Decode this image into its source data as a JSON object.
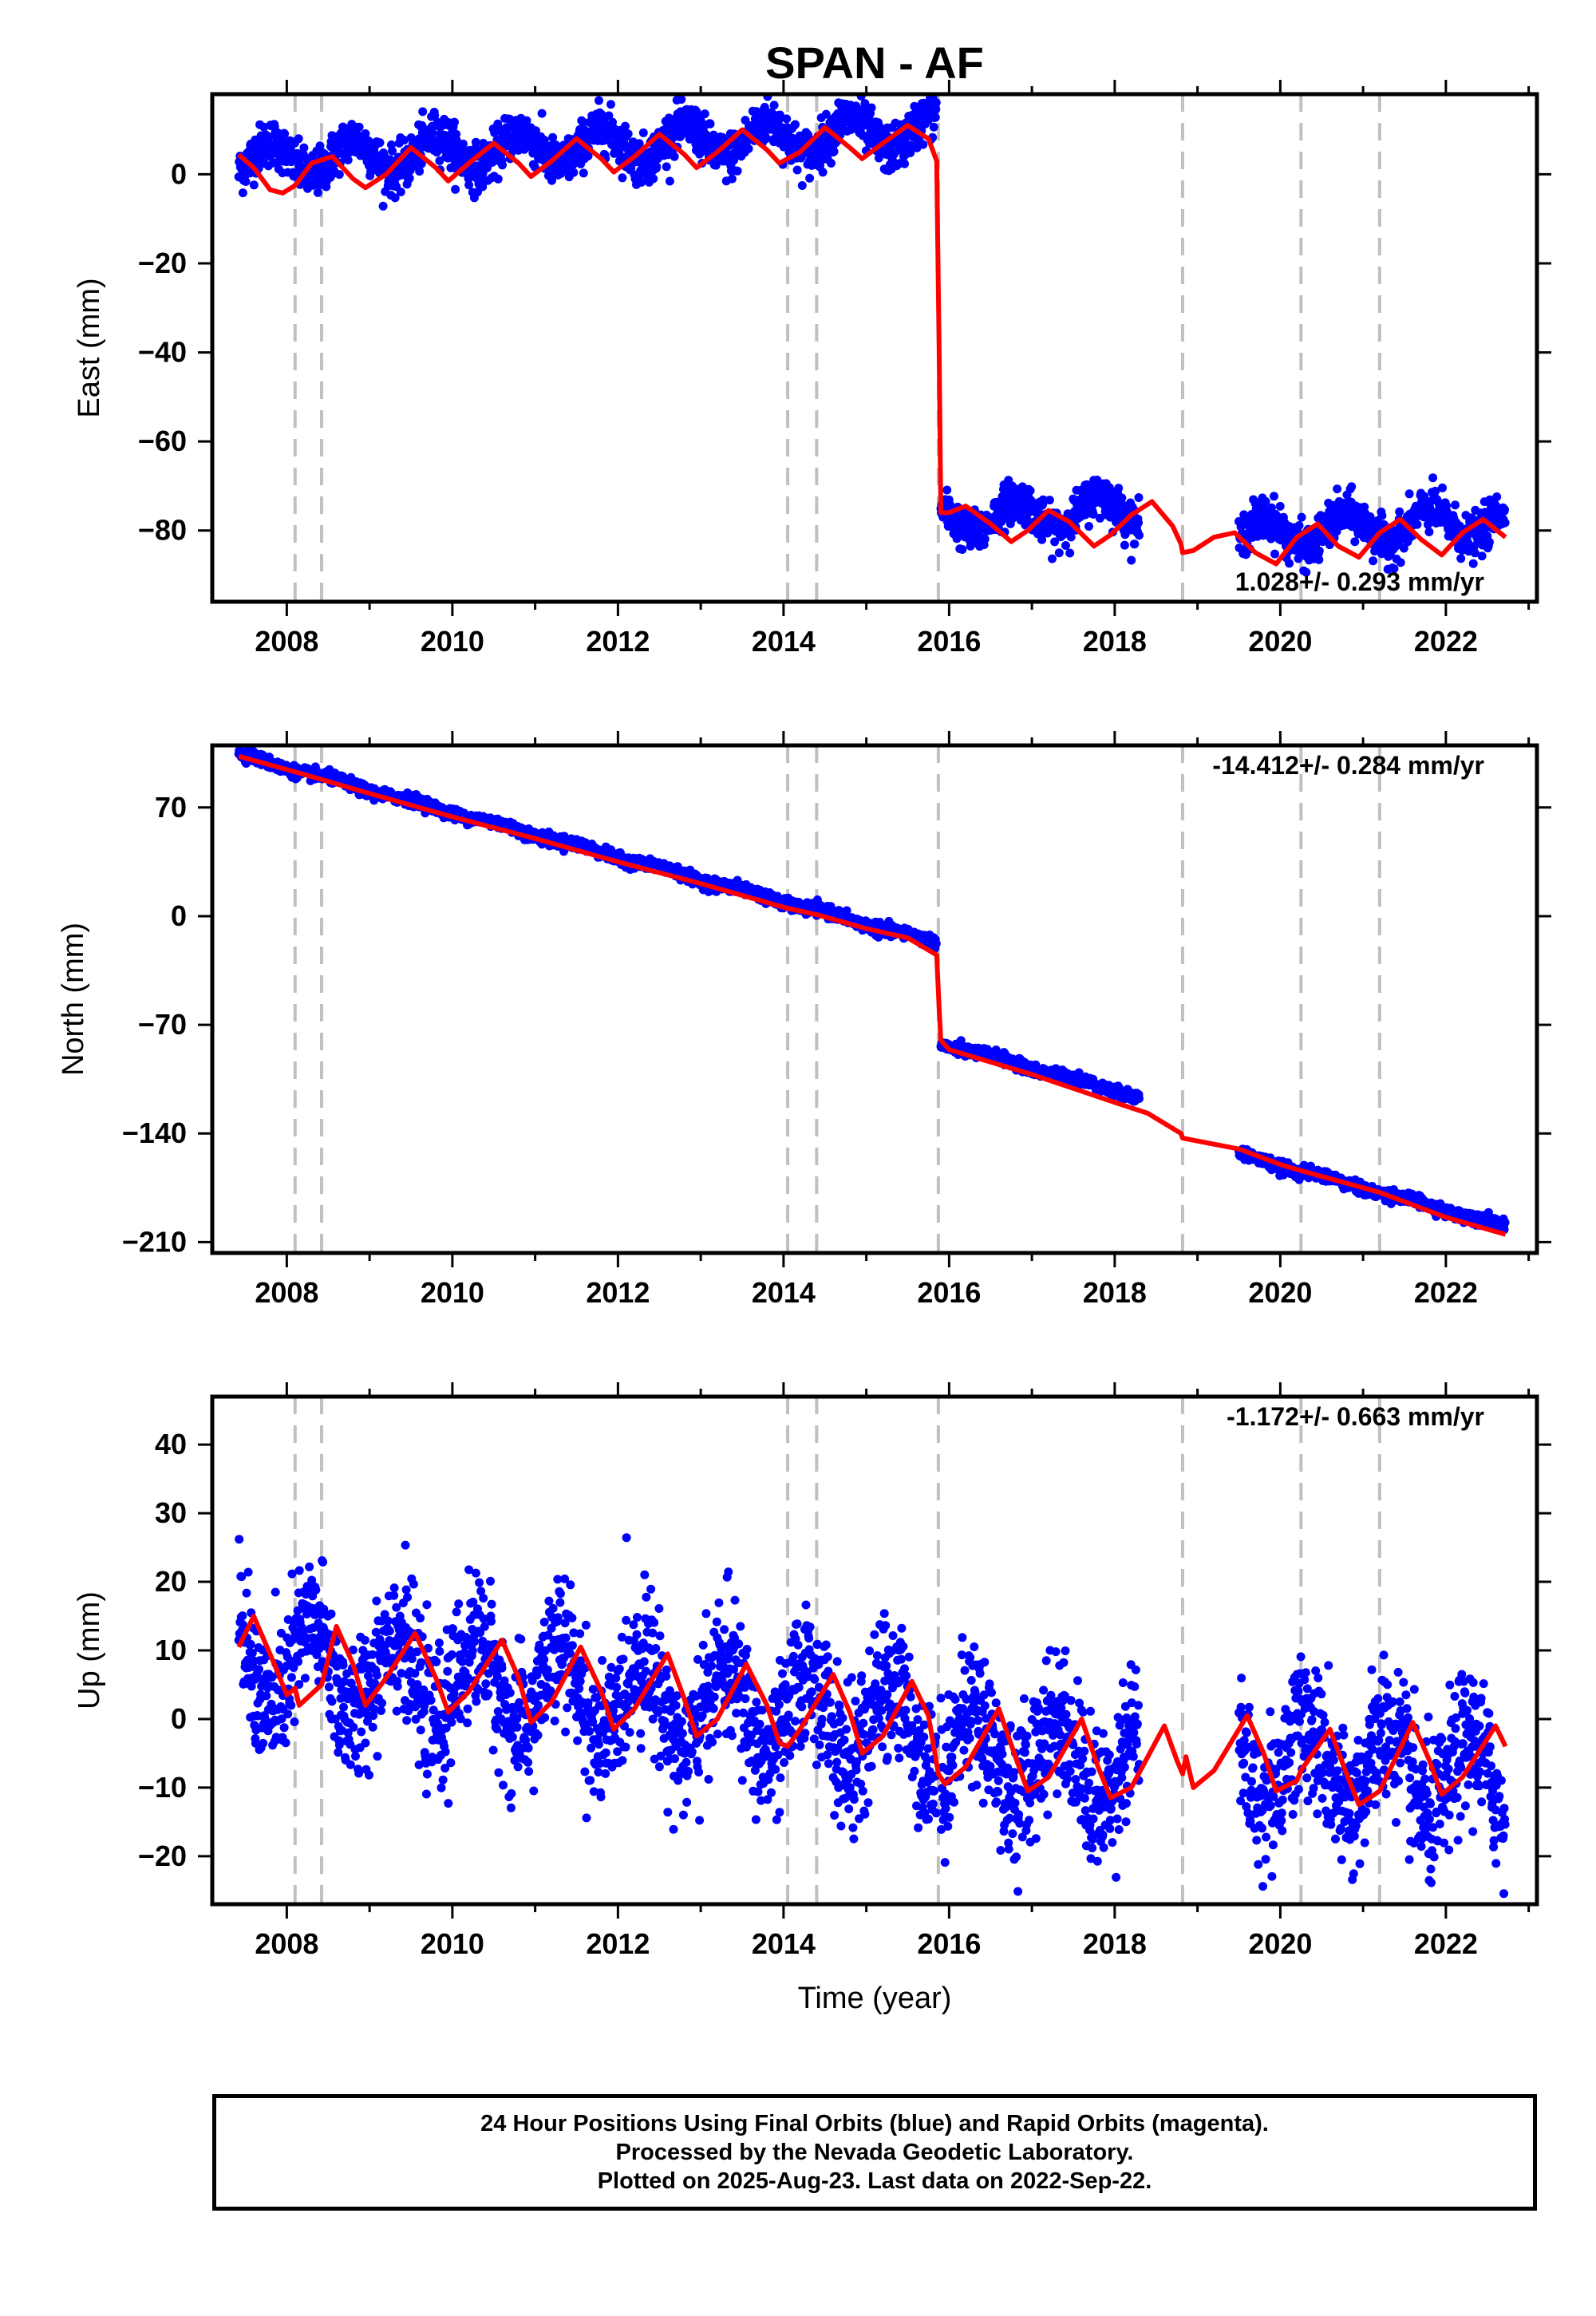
{
  "title": "SPAN - AF",
  "xlabel": "Time (year)",
  "colors": {
    "final_orbits": "#0000ff",
    "model": "#ff0000",
    "equipment_change": "#c0c0c0",
    "axes": "#000000"
  },
  "footer": {
    "line1": "24 Hour Positions Using Final Orbits (blue) and Rapid Orbits (magenta).",
    "line2": "Processed by the Nevada Geodetic Laboratory.",
    "line3": "Plotted on 2025-Aug-23. Last data on 2022-Sep-22."
  },
  "chart_data": [
    {
      "type": "scatter",
      "component": "east",
      "title": "SPAN - AF",
      "ylabel": "East (mm)",
      "xlabel": "",
      "xlim": [
        2007.1,
        2023.1
      ],
      "ylim": [
        -96,
        18
      ],
      "xticks": [
        "2008",
        "2010",
        "2012",
        "2014",
        "2016",
        "2018",
        "2020",
        "2022"
      ],
      "yticks": [
        "0",
        "−20",
        "−40",
        "−60",
        "−80"
      ],
      "ytick_values": [
        0,
        -20,
        -40,
        -60,
        -80
      ],
      "velocity": "1.028+/- 0.293 mm/yr",
      "velocity_position": "bottom-right",
      "equipment_changes": [
        2008.1,
        2008.42,
        2014.05,
        2014.4,
        2015.87,
        2018.82,
        2020.25,
        2021.2
      ],
      "series": [
        {
          "kind": "points",
          "segments": [
            {
              "start": 2007.42,
              "end": 2015.85,
              "offset": 3.0,
              "rate": 0.8,
              "amplitude": 3.8,
              "phase": 0.55,
              "scatter": 2.6
            },
            {
              "start": 2015.9,
              "end": 2018.3,
              "offset": -77.5,
              "rate": 1.0,
              "amplitude": 3.5,
              "phase": 0.55,
              "scatter": 2.3
            },
            {
              "start": 2019.5,
              "end": 2022.72,
              "offset": -81.0,
              "rate": 1.0,
              "amplitude": 3.5,
              "phase": 0.55,
              "scatter": 2.4
            }
          ]
        },
        {
          "kind": "model",
          "points": [
            [
              2007.42,
              4.4
            ],
            [
              2007.6,
              1.5
            ],
            [
              2007.8,
              -3.5
            ],
            [
              2007.95,
              -4.2
            ],
            [
              2008.1,
              -2.5
            ],
            [
              2008.3,
              2.5
            ],
            [
              2008.55,
              4.0
            ],
            [
              2008.8,
              -1.0
            ],
            [
              2008.95,
              -3.0
            ],
            [
              2009.2,
              0.0
            ],
            [
              2009.5,
              6.0
            ],
            [
              2009.8,
              1.5
            ],
            [
              2009.95,
              -1.5
            ],
            [
              2010.2,
              2.5
            ],
            [
              2010.5,
              7.0
            ],
            [
              2010.8,
              2.5
            ],
            [
              2010.95,
              -0.5
            ],
            [
              2011.2,
              3.0
            ],
            [
              2011.5,
              8.0
            ],
            [
              2011.8,
              3.5
            ],
            [
              2011.95,
              0.5
            ],
            [
              2012.2,
              4.0
            ],
            [
              2012.5,
              9.0
            ],
            [
              2012.8,
              4.5
            ],
            [
              2012.95,
              1.5
            ],
            [
              2013.2,
              5.0
            ],
            [
              2013.5,
              10.0
            ],
            [
              2013.8,
              5.5
            ],
            [
              2013.95,
              2.5
            ],
            [
              2014.2,
              5.0
            ],
            [
              2014.5,
              10.5
            ],
            [
              2014.8,
              6.0
            ],
            [
              2014.95,
              3.5
            ],
            [
              2015.2,
              7.0
            ],
            [
              2015.5,
              11.0
            ],
            [
              2015.75,
              8.0
            ],
            [
              2015.85,
              3.0
            ],
            [
              2015.88,
              -40.0
            ],
            [
              2015.9,
              -76.0
            ],
            [
              2016.0,
              -76.0
            ],
            [
              2016.2,
              -74.5
            ],
            [
              2016.5,
              -78.5
            ],
            [
              2016.75,
              -82.5
            ],
            [
              2016.95,
              -80.0
            ],
            [
              2017.2,
              -75.5
            ],
            [
              2017.45,
              -78.0
            ],
            [
              2017.75,
              -83.5
            ],
            [
              2017.95,
              -81.0
            ],
            [
              2018.2,
              -76.5
            ],
            [
              2018.45,
              -73.5
            ],
            [
              2018.7,
              -79.0
            ],
            [
              2018.8,
              -83.0
            ],
            [
              2018.82,
              -85.0
            ],
            [
              2018.95,
              -84.5
            ],
            [
              2019.2,
              -81.5
            ],
            [
              2019.45,
              -80.5
            ],
            [
              2019.7,
              -85.0
            ],
            [
              2019.95,
              -87.5
            ],
            [
              2020.2,
              -81.5
            ],
            [
              2020.45,
              -78.5
            ],
            [
              2020.7,
              -83.5
            ],
            [
              2020.95,
              -86.0
            ],
            [
              2021.2,
              -80.5
            ],
            [
              2021.45,
              -77.5
            ],
            [
              2021.7,
              -82.0
            ],
            [
              2021.95,
              -85.5
            ],
            [
              2022.2,
              -80.5
            ],
            [
              2022.45,
              -77.5
            ],
            [
              2022.72,
              -81.5
            ]
          ]
        }
      ]
    },
    {
      "type": "scatter",
      "component": "north",
      "title": "",
      "ylabel": "North (mm)",
      "xlabel": "",
      "xlim": [
        2007.1,
        2023.1
      ],
      "ylim": [
        -217,
        110
      ],
      "xticks": [
        "2008",
        "2010",
        "2012",
        "2014",
        "2016",
        "2018",
        "2020",
        "2022"
      ],
      "yticks": [
        "70",
        "0",
        "−70",
        "−140",
        "−210"
      ],
      "ytick_values": [
        70,
        0,
        -70,
        -140,
        -210
      ],
      "velocity": "-14.412+/- 0.284 mm/yr",
      "velocity_position": "top-right",
      "equipment_changes": [
        2008.1,
        2008.42,
        2014.05,
        2014.4,
        2015.87,
        2018.82,
        2020.25,
        2021.2
      ],
      "series": [
        {
          "kind": "points",
          "segments": [
            {
              "start": 2007.42,
              "end": 2015.85,
              "offset": 104.0,
              "rate": -14.4,
              "amplitude": 1.2,
              "phase": 0.3,
              "scatter": 1.8
            },
            {
              "start": 2015.9,
              "end": 2018.3,
              "offset": -82.0,
              "rate": -14.4,
              "amplitude": 1.2,
              "phase": 0.3,
              "scatter": 1.8
            },
            {
              "start": 2019.5,
              "end": 2022.72,
              "offset": -153.5,
              "rate": -14.4,
              "amplitude": 1.2,
              "phase": 0.3,
              "scatter": 1.8
            }
          ]
        },
        {
          "kind": "model",
          "points": [
            [
              2007.42,
              103.0
            ],
            [
              2008.1,
              93.0
            ],
            [
              2008.42,
              88.0
            ],
            [
              2009.0,
              79.0
            ],
            [
              2010.0,
              64.0
            ],
            [
              2011.0,
              50.0
            ],
            [
              2012.0,
              35.0
            ],
            [
              2013.0,
              21.0
            ],
            [
              2014.05,
              5.0
            ],
            [
              2014.4,
              1.0
            ],
            [
              2015.0,
              -8.0
            ],
            [
              2015.5,
              -14.0
            ],
            [
              2015.85,
              -25.0
            ],
            [
              2015.88,
              -60.0
            ],
            [
              2015.9,
              -80.0
            ],
            [
              2016.0,
              -86.0
            ],
            [
              2017.0,
              -102.0
            ],
            [
              2018.0,
              -120.0
            ],
            [
              2018.4,
              -127.0
            ],
            [
              2018.8,
              -140.0
            ],
            [
              2018.82,
              -143.0
            ],
            [
              2019.5,
              -150.0
            ],
            [
              2020.0,
              -160.0
            ],
            [
              2020.25,
              -164.0
            ],
            [
              2021.0,
              -175.0
            ],
            [
              2021.2,
              -178.0
            ],
            [
              2022.0,
              -194.0
            ],
            [
              2022.72,
              -205.0
            ]
          ]
        }
      ]
    },
    {
      "type": "scatter",
      "component": "up",
      "title": "",
      "ylabel": "Up (mm)",
      "xlabel": "Time (year)",
      "xlim": [
        2007.1,
        2023.1
      ],
      "ylim": [
        -27,
        47
      ],
      "xticks": [
        "2008",
        "2010",
        "2012",
        "2014",
        "2016",
        "2018",
        "2020",
        "2022"
      ],
      "yticks": [
        "40",
        "30",
        "20",
        "10",
        "0",
        "−10",
        "−20"
      ],
      "ytick_values": [
        40,
        30,
        20,
        10,
        0,
        -10,
        -20
      ],
      "velocity": "-1.172+/- 0.663 mm/yr",
      "velocity_position": "top-right",
      "equipment_changes": [
        2008.1,
        2008.42,
        2014.05,
        2014.4,
        2015.87,
        2018.82,
        2020.25,
        2021.2
      ],
      "series": [
        {
          "kind": "points",
          "segments": [
            {
              "start": 2007.42,
              "end": 2015.85,
              "offset": 8.5,
              "rate": -1.2,
              "amplitude": 6.5,
              "phase": 0.05,
              "scatter": 5.0
            },
            {
              "start": 2015.9,
              "end": 2018.3,
              "offset": -4.0,
              "rate": -1.2,
              "amplitude": 6.0,
              "phase": 0.05,
              "scatter": 5.2
            },
            {
              "start": 2019.5,
              "end": 2022.72,
              "offset": -5.5,
              "rate": -1.2,
              "amplitude": 6.0,
              "phase": 0.05,
              "scatter": 5.2
            }
          ]
        },
        {
          "kind": "model",
          "points": [
            [
              2007.42,
              10.5
            ],
            [
              2007.6,
              15.0
            ],
            [
              2007.85,
              8.0
            ],
            [
              2008.0,
              3.5
            ],
            [
              2008.1,
              4.5
            ],
            [
              2008.15,
              2.0
            ],
            [
              2008.42,
              5.0
            ],
            [
              2008.6,
              13.5
            ],
            [
              2008.8,
              8.0
            ],
            [
              2008.95,
              2.0
            ],
            [
              2009.2,
              6.0
            ],
            [
              2009.55,
              12.5
            ],
            [
              2009.8,
              6.0
            ],
            [
              2009.95,
              1.0
            ],
            [
              2010.2,
              4.0
            ],
            [
              2010.6,
              11.5
            ],
            [
              2010.8,
              6.0
            ],
            [
              2010.95,
              -0.5
            ],
            [
              2011.2,
              2.5
            ],
            [
              2011.55,
              10.5
            ],
            [
              2011.8,
              4.0
            ],
            [
              2011.95,
              -1.5
            ],
            [
              2012.2,
              1.5
            ],
            [
              2012.6,
              9.5
            ],
            [
              2012.8,
              3.0
            ],
            [
              2012.95,
              -2.5
            ],
            [
              2013.2,
              0.0
            ],
            [
              2013.55,
              8.0
            ],
            [
              2013.8,
              2.0
            ],
            [
              2013.95,
              -3.5
            ],
            [
              2014.05,
              -4.0
            ],
            [
              2014.2,
              -1.5
            ],
            [
              2014.6,
              6.5
            ],
            [
              2014.8,
              1.0
            ],
            [
              2014.95,
              -5.0
            ],
            [
              2015.2,
              -2.5
            ],
            [
              2015.55,
              5.5
            ],
            [
              2015.75,
              0.5
            ],
            [
              2015.87,
              -8.0
            ],
            [
              2015.95,
              -9.5
            ],
            [
              2016.2,
              -7.0
            ],
            [
              2016.6,
              1.5
            ],
            [
              2016.8,
              -5.5
            ],
            [
              2016.95,
              -10.5
            ],
            [
              2017.2,
              -8.5
            ],
            [
              2017.6,
              0.0
            ],
            [
              2017.8,
              -7.0
            ],
            [
              2017.95,
              -11.5
            ],
            [
              2018.2,
              -10.0
            ],
            [
              2018.6,
              -1.0
            ],
            [
              2018.75,
              -6.0
            ],
            [
              2018.82,
              -8.0
            ],
            [
              2018.86,
              -5.5
            ],
            [
              2018.95,
              -10.0
            ],
            [
              2019.2,
              -7.5
            ],
            [
              2019.6,
              0.5
            ],
            [
              2019.8,
              -5.0
            ],
            [
              2019.95,
              -10.5
            ],
            [
              2020.2,
              -9.0
            ],
            [
              2020.25,
              -7.5
            ],
            [
              2020.6,
              -1.5
            ],
            [
              2020.8,
              -8.0
            ],
            [
              2020.95,
              -12.5
            ],
            [
              2021.2,
              -10.5
            ],
            [
              2021.6,
              -0.5
            ],
            [
              2021.8,
              -6.0
            ],
            [
              2021.95,
              -11.0
            ],
            [
              2022.2,
              -8.5
            ],
            [
              2022.6,
              -1.0
            ],
            [
              2022.72,
              -4.0
            ]
          ]
        }
      ]
    }
  ]
}
